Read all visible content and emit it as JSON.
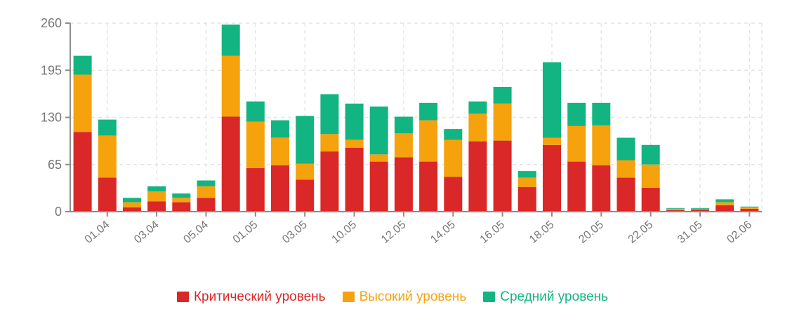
{
  "chart": {
    "background": "#ffffff",
    "axis_color": "#8c8c8c",
    "grid_color": "#e4e4e4",
    "tick_label_color": "#777777"
  },
  "chart_data": {
    "type": "bar",
    "stacked": true,
    "title": "",
    "xlabel": "",
    "ylabel": "",
    "grid": true,
    "legend_position": "bottom",
    "ylim": [
      0,
      260
    ],
    "yticks": [
      0,
      65,
      130,
      195,
      260
    ],
    "x_tick_labels": [
      "01.04",
      "03.04",
      "05.04",
      "01.05",
      "03.05",
      "10.05",
      "12.05",
      "14.05",
      "16.05",
      "18.05",
      "20.05",
      "22.05",
      "31.05",
      "02.06"
    ],
    "categories": [
      "",
      "01.04",
      "",
      "03.04",
      "",
      "05.04",
      "",
      "01.05",
      "",
      "03.05",
      "",
      "10.05",
      "",
      "12.05",
      "",
      "14.05",
      "",
      "16.05",
      "",
      "18.05",
      "",
      "20.05",
      "",
      "22.05",
      "",
      "31.05",
      "",
      "02.06"
    ],
    "series": [
      {
        "name": "Критический уровень",
        "color": "#da2727",
        "values": [
          110,
          47,
          6,
          14,
          13,
          19,
          131,
          60,
          64,
          44,
          83,
          88,
          69,
          75,
          69,
          48,
          97,
          98,
          34,
          92,
          69,
          64,
          47,
          33,
          2,
          3,
          9,
          4
        ]
      },
      {
        "name": "Высокий уровень",
        "color": "#f5a20d",
        "values": [
          79,
          58,
          7,
          14,
          6,
          16,
          84,
          64,
          38,
          22,
          24,
          11,
          10,
          33,
          57,
          51,
          38,
          51,
          13,
          10,
          49,
          55,
          24,
          32,
          2,
          1,
          4,
          2
        ]
      },
      {
        "name": "Средний уровень",
        "color": "#12b581",
        "values": [
          26,
          22,
          6,
          7,
          6,
          8,
          43,
          28,
          24,
          66,
          55,
          50,
          66,
          23,
          24,
          15,
          17,
          23,
          9,
          104,
          32,
          31,
          31,
          27,
          1,
          1,
          4,
          1
        ]
      }
    ]
  }
}
